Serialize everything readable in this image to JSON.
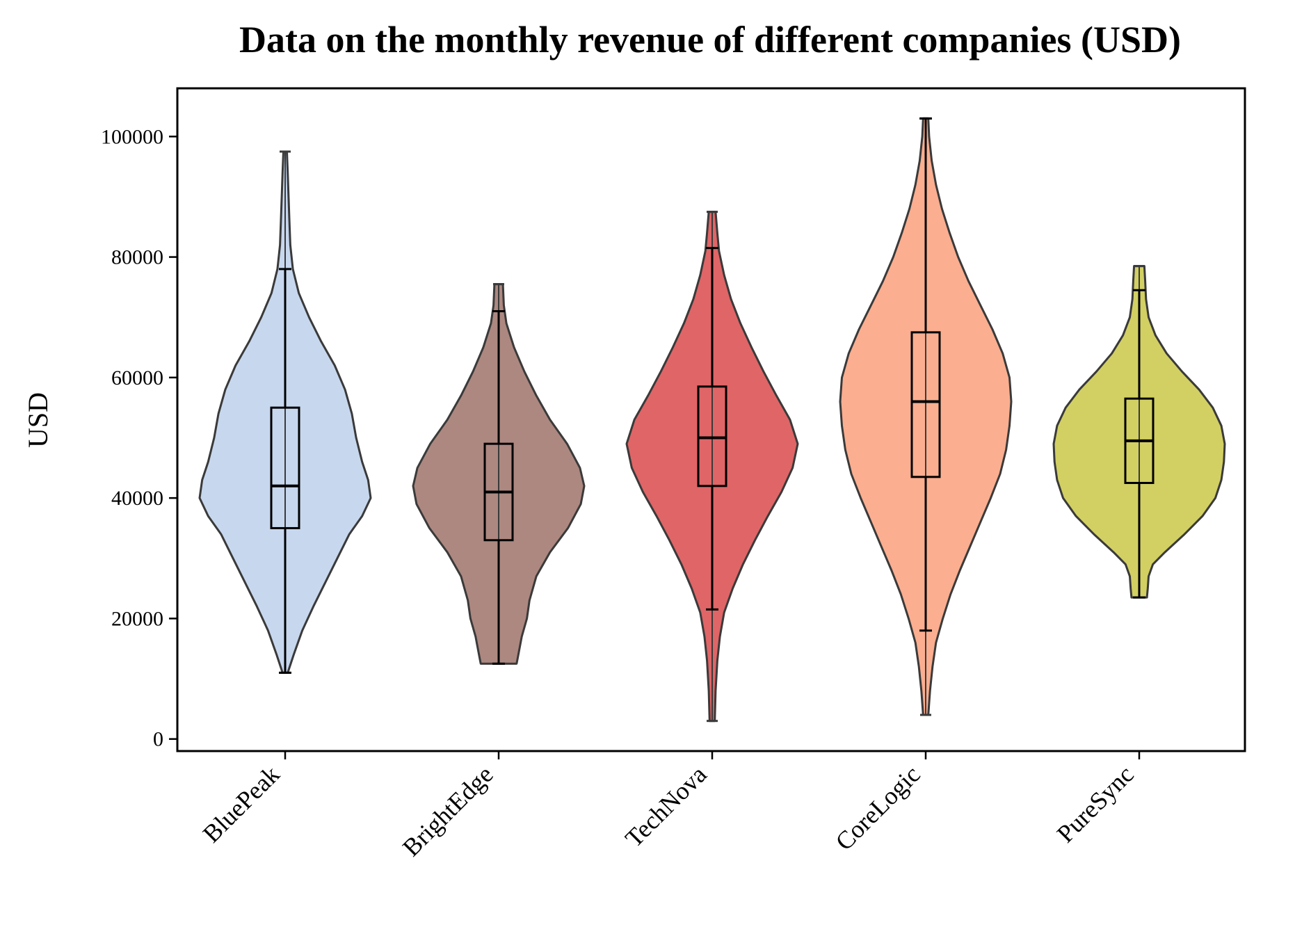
{
  "chart_data": {
    "type": "violin",
    "title": "Data on the monthly revenue of different companies (USD)",
    "xlabel": "",
    "ylabel": "USD",
    "ylim": [
      -2000,
      108000
    ],
    "yticks": [
      0,
      20000,
      40000,
      60000,
      80000,
      100000
    ],
    "ytick_labels": [
      "0",
      "20000",
      "40000",
      "60000",
      "80000",
      "100000"
    ],
    "grid": false,
    "legend": "none",
    "categories": [
      "BluePeak",
      "BrightEdge",
      "TechNova",
      "CoreLogic",
      "PureSync"
    ],
    "series": [
      {
        "category": "BluePeak",
        "color": "#c6d7ee",
        "min": 11000,
        "q1": 35000,
        "median": 42000,
        "q3": 55000,
        "max": 97500,
        "whisker_low": 11000,
        "whisker_high": 78000,
        "density": [
          [
            11000,
            0.03
          ],
          [
            14000,
            0.1
          ],
          [
            18000,
            0.2
          ],
          [
            22000,
            0.33
          ],
          [
            26000,
            0.47
          ],
          [
            30000,
            0.61
          ],
          [
            34000,
            0.75
          ],
          [
            37000,
            0.9
          ],
          [
            40000,
            1.0
          ],
          [
            43000,
            0.97
          ],
          [
            46000,
            0.9
          ],
          [
            50000,
            0.83
          ],
          [
            54000,
            0.78
          ],
          [
            58000,
            0.7
          ],
          [
            62000,
            0.58
          ],
          [
            66000,
            0.42
          ],
          [
            70000,
            0.28
          ],
          [
            74000,
            0.16
          ],
          [
            78000,
            0.09
          ],
          [
            82000,
            0.06
          ],
          [
            86000,
            0.05
          ],
          [
            90000,
            0.04
          ],
          [
            94000,
            0.03
          ],
          [
            97500,
            0.02
          ]
        ]
      },
      {
        "category": "BrightEdge",
        "color": "#ad8880",
        "min": 12500,
        "q1": 33000,
        "median": 41000,
        "q3": 49000,
        "max": 75500,
        "whisker_low": 12500,
        "whisker_high": 71000,
        "density": [
          [
            12500,
            0.21
          ],
          [
            14000,
            0.23
          ],
          [
            17000,
            0.27
          ],
          [
            20000,
            0.33
          ],
          [
            23000,
            0.36
          ],
          [
            27000,
            0.44
          ],
          [
            31000,
            0.6
          ],
          [
            35000,
            0.81
          ],
          [
            39000,
            0.96
          ],
          [
            42000,
            1.0
          ],
          [
            45000,
            0.95
          ],
          [
            49000,
            0.8
          ],
          [
            53000,
            0.6
          ],
          [
            57000,
            0.44
          ],
          [
            61000,
            0.3
          ],
          [
            65000,
            0.18
          ],
          [
            69000,
            0.09
          ],
          [
            72000,
            0.06
          ],
          [
            75500,
            0.05
          ]
        ]
      },
      {
        "category": "TechNova",
        "color": "#e06566",
        "min": 3000,
        "q1": 42000,
        "median": 50000,
        "q3": 58500,
        "max": 87500,
        "whisker_low": 21500,
        "whisker_high": 81500,
        "density": [
          [
            3000,
            0.03
          ],
          [
            8000,
            0.04
          ],
          [
            13000,
            0.06
          ],
          [
            17000,
            0.09
          ],
          [
            21000,
            0.14
          ],
          [
            25000,
            0.24
          ],
          [
            29000,
            0.36
          ],
          [
            33000,
            0.5
          ],
          [
            37000,
            0.65
          ],
          [
            41000,
            0.81
          ],
          [
            45000,
            0.94
          ],
          [
            49000,
            1.0
          ],
          [
            53000,
            0.91
          ],
          [
            57000,
            0.75
          ],
          [
            61000,
            0.6
          ],
          [
            65000,
            0.46
          ],
          [
            69000,
            0.33
          ],
          [
            73000,
            0.22
          ],
          [
            77000,
            0.14
          ],
          [
            81000,
            0.08
          ],
          [
            84000,
            0.06
          ],
          [
            87500,
            0.04
          ]
        ]
      },
      {
        "category": "CoreLogic",
        "color": "#fbaf90",
        "min": 4000,
        "q1": 43500,
        "median": 56000,
        "q3": 67500,
        "max": 103000,
        "whisker_low": 18000,
        "whisker_high": 103000,
        "density": [
          [
            4000,
            0.03
          ],
          [
            8000,
            0.05
          ],
          [
            12000,
            0.08
          ],
          [
            16000,
            0.12
          ],
          [
            20000,
            0.2
          ],
          [
            24000,
            0.29
          ],
          [
            28000,
            0.4
          ],
          [
            32000,
            0.52
          ],
          [
            36000,
            0.64
          ],
          [
            40000,
            0.76
          ],
          [
            44000,
            0.87
          ],
          [
            48000,
            0.94
          ],
          [
            52000,
            0.98
          ],
          [
            56000,
            1.0
          ],
          [
            60000,
            0.98
          ],
          [
            64000,
            0.9
          ],
          [
            68000,
            0.78
          ],
          [
            72000,
            0.64
          ],
          [
            76000,
            0.5
          ],
          [
            80000,
            0.38
          ],
          [
            84000,
            0.28
          ],
          [
            88000,
            0.19
          ],
          [
            92000,
            0.12
          ],
          [
            96000,
            0.07
          ],
          [
            100000,
            0.04
          ],
          [
            103000,
            0.03
          ]
        ]
      },
      {
        "category": "PureSync",
        "color": "#d2d062",
        "min": 23500,
        "q1": 42500,
        "median": 49500,
        "q3": 56500,
        "max": 78500,
        "whisker_low": 23500,
        "whisker_high": 74500,
        "density": [
          [
            23500,
            0.09
          ],
          [
            25000,
            0.1
          ],
          [
            27000,
            0.11
          ],
          [
            29000,
            0.16
          ],
          [
            31000,
            0.3
          ],
          [
            34000,
            0.53
          ],
          [
            37000,
            0.74
          ],
          [
            40000,
            0.89
          ],
          [
            43000,
            0.96
          ],
          [
            46000,
            0.99
          ],
          [
            49000,
            1.0
          ],
          [
            52000,
            0.96
          ],
          [
            55000,
            0.86
          ],
          [
            58000,
            0.7
          ],
          [
            61000,
            0.5
          ],
          [
            64000,
            0.32
          ],
          [
            67000,
            0.19
          ],
          [
            70000,
            0.11
          ],
          [
            73000,
            0.08
          ],
          [
            76000,
            0.07
          ],
          [
            78500,
            0.06
          ]
        ]
      }
    ]
  }
}
